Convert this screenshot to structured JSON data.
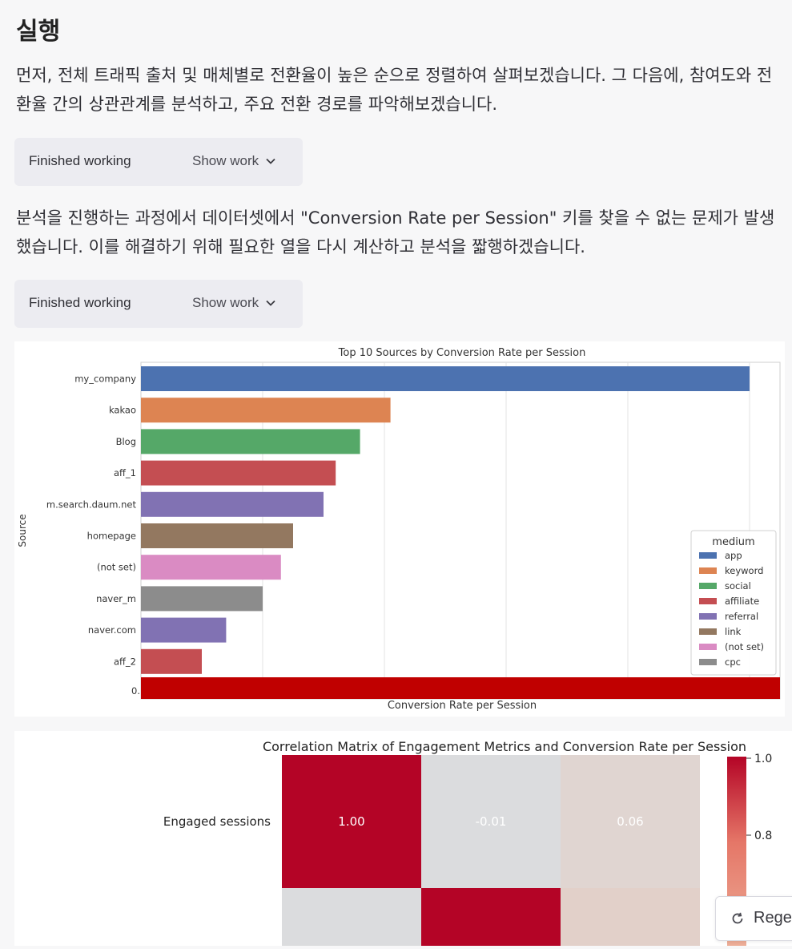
{
  "section": {
    "title": "실행",
    "para1": "먼저, 전체 트래픽 출처 및 매체별로 전환율이 높은 순으로 정렬하여 살펴보겠습니다. 그 다음에, 참여도와 전환율 간의 상관관계를 분석하고, 주요 전환 경로를 파악해보겠습니다.",
    "para2": "분석을 진행하는 과정에서 데이터셋에서 \"Conversion Rate per Session\" 키를 찾을 수 없는 문제가 발생했습니다. 이를 해결하기 위해 필요한 열을 다시 계산하고 분석을 짧행하겠습니다."
  },
  "work_boxes": [
    {
      "status": "Finished working",
      "toggle": "Show work"
    },
    {
      "status": "Finished working",
      "toggle": "Show work"
    }
  ],
  "regenerate_button": {
    "label": "Rege",
    "icon": "refresh-icon"
  },
  "chart_data": [
    {
      "type": "bar",
      "orientation": "horizontal",
      "title": "Top 10 Sources by Conversion Rate per Session",
      "xlabel": "Conversion Rate per Session",
      "ylabel": "Source",
      "categories": [
        "my_company",
        "kakao",
        "Blog",
        "aff_1",
        "m.search.daum.net",
        "homepage",
        "(not set)",
        "naver_m",
        "naver.com",
        "aff_2"
      ],
      "values": [
        1.0,
        0.41,
        0.36,
        0.32,
        0.3,
        0.25,
        0.23,
        0.2,
        0.14,
        0.1
      ],
      "bar_mediums": [
        "app",
        "keyword",
        "social",
        "affiliate",
        "referral",
        "link",
        "(not set)",
        "cpc",
        "referral",
        "affiliate"
      ],
      "x_tick_partial_label": "0.",
      "grid": true,
      "legend": {
        "title": "medium",
        "placement": "lower-right",
        "entries": [
          {
            "name": "app",
            "color": "#4c72b0"
          },
          {
            "name": "keyword",
            "color": "#dd8452"
          },
          {
            "name": "social",
            "color": "#55a868"
          },
          {
            "name": "affiliate",
            "color": "#c44e52"
          },
          {
            "name": "referral",
            "color": "#8172b3"
          },
          {
            "name": "link",
            "color": "#937860"
          },
          {
            "name": "(not set)",
            "color": "#da8bc3"
          },
          {
            "name": "cpc",
            "color": "#8c8c8c"
          }
        ]
      },
      "redaction_color": "#c00000"
    },
    {
      "type": "heatmap",
      "title": "Correlation Matrix of Engagement Metrics and Conversion Rate per Session",
      "row_labels": [
        "Engaged sessions",
        ""
      ],
      "values": [
        [
          1.0,
          -0.01,
          0.06
        ],
        [
          -0.01,
          1.0,
          0.1
        ]
      ],
      "annotations": [
        [
          "1.00",
          "-0.01",
          "0.06"
        ]
      ],
      "colormap": "coolwarm",
      "colorbar_ticks": [
        "1.0",
        "0.8"
      ]
    }
  ]
}
